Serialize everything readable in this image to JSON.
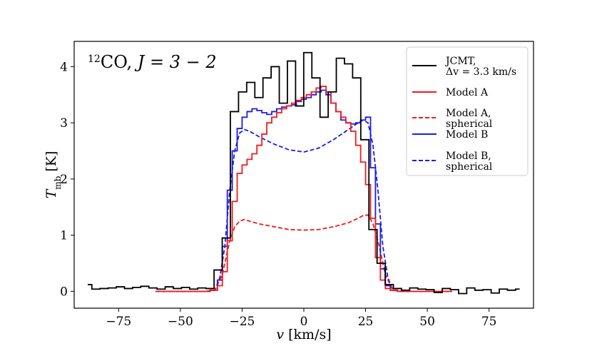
{
  "chart_data": {
    "type": "line",
    "title": "CO, J = 3 − 2",
    "title_isotope": "12",
    "title_species": "CO, ",
    "title_transition": "J = 3 − 2",
    "xlabel": "v [km/s]",
    "xlabel_symbol": "v",
    "xlabel_unit": " [km/s]",
    "ylabel": "T_mb [K]",
    "ylabel_symbol": "T",
    "ylabel_sub": "mb",
    "ylabel_unit": " [K]",
    "xlim": [
      -93,
      93
    ],
    "ylim": [
      -0.3,
      4.45
    ],
    "xticks": [
      -75,
      -50,
      -25,
      0,
      25,
      50,
      75
    ],
    "xtick_labels": [
      "−75",
      "−50",
      "−25",
      "0",
      "25",
      "50",
      "75"
    ],
    "yticks": [
      0,
      1,
      2,
      3,
      4
    ],
    "ytick_labels": [
      "0",
      "1",
      "2",
      "3",
      "4"
    ],
    "legend_position": "top-right",
    "series": [
      {
        "name": "JCMT, Δv = 3.3 km/s",
        "legend_line1": "JCMT,",
        "legend_line2": "Δv = 3.3 km/s",
        "color": "#000000",
        "style": "solid",
        "draw": "steps-mid",
        "x": [
          -87.5,
          -84.2,
          -80.9,
          -77.6,
          -74.3,
          -71.0,
          -67.7,
          -64.4,
          -61.1,
          -57.8,
          -54.5,
          -51.2,
          -47.9,
          -44.6,
          -41.3,
          -38.0,
          -34.7,
          -31.4,
          -28.1,
          -24.8,
          -21.5,
          -18.2,
          -14.9,
          -11.6,
          -8.3,
          -5.0,
          -1.7,
          1.6,
          4.9,
          8.2,
          11.5,
          14.8,
          18.1,
          21.4,
          24.7,
          28.0,
          31.3,
          34.6,
          37.9,
          41.2,
          44.5,
          47.8,
          51.1,
          54.4,
          57.7,
          61.0,
          64.3,
          67.6,
          70.9,
          74.2,
          77.5,
          80.8,
          84.1,
          87.4
        ],
        "y": [
          0.12,
          0.04,
          0.05,
          0.06,
          0.08,
          0.05,
          0.07,
          0.09,
          0.06,
          0.04,
          0.08,
          0.05,
          0.07,
          0.04,
          0.06,
          0.05,
          0.38,
          0.95,
          3.2,
          3.55,
          3.72,
          3.45,
          3.8,
          4.0,
          3.35,
          4.1,
          3.3,
          4.25,
          3.8,
          3.1,
          3.55,
          4.15,
          4.05,
          3.8,
          2.7,
          1.1,
          0.5,
          0.12,
          0.05,
          0.02,
          0.06,
          0.04,
          0.03,
          -0.02,
          0.05,
          0.03,
          -0.04,
          0.06,
          0.02,
          0.03,
          -0.03,
          0.04,
          0.02,
          0.04
        ]
      },
      {
        "name": "Model A",
        "legend_line1": "Model A",
        "legend_line2": "",
        "color": "#ee1c1c",
        "style": "solid",
        "draw": "steps-mid",
        "x": [
          -60,
          -55,
          -50,
          -45,
          -40,
          -36,
          -34,
          -32,
          -30,
          -28,
          -26,
          -24,
          -22,
          -20,
          -18,
          -16,
          -14,
          -12,
          -10,
          -8,
          -6,
          -4,
          -2,
          0,
          2,
          4,
          6,
          8,
          10,
          12,
          14,
          16,
          18,
          20,
          22,
          24,
          26,
          28,
          30,
          32,
          34,
          36,
          40,
          45,
          50,
          55,
          60
        ],
        "y": [
          0,
          0,
          0,
          0,
          0,
          0.02,
          0.1,
          0.35,
          0.9,
          1.6,
          2.1,
          2.25,
          2.35,
          2.45,
          2.6,
          2.8,
          3.0,
          3.1,
          3.18,
          3.25,
          3.3,
          3.35,
          3.4,
          3.45,
          3.5,
          3.55,
          3.62,
          3.65,
          3.55,
          3.35,
          3.2,
          3.1,
          3.0,
          2.85,
          2.6,
          2.3,
          1.9,
          1.3,
          0.6,
          0.2,
          0.05,
          0.02,
          0,
          0,
          0,
          0,
          0
        ]
      },
      {
        "name": "Model A, spherical",
        "legend_line1": "Model A,",
        "legend_line2": "spherical",
        "color": "#ee1c1c",
        "style": "dashed",
        "draw": "line",
        "x": [
          -60,
          -50,
          -40,
          -36,
          -33,
          -30,
          -28,
          -26,
          -24,
          -22,
          -18,
          -12,
          -6,
          0,
          6,
          12,
          18,
          22,
          24,
          26,
          28,
          30,
          33,
          36,
          40,
          50,
          60
        ],
        "y": [
          0,
          0,
          0,
          0.02,
          0.3,
          0.9,
          1.15,
          1.25,
          1.28,
          1.25,
          1.2,
          1.15,
          1.1,
          1.09,
          1.1,
          1.15,
          1.22,
          1.3,
          1.35,
          1.36,
          1.2,
          0.9,
          0.3,
          0.02,
          0,
          0,
          0
        ]
      },
      {
        "name": "Model B",
        "legend_line1": "Model B",
        "legend_line2": "",
        "color": "#1c1ce6",
        "style": "solid",
        "draw": "steps-mid",
        "x": [
          -60,
          -50,
          -40,
          -36,
          -34,
          -32,
          -30,
          -28,
          -26,
          -24,
          -22,
          -20,
          -18,
          -16,
          -14,
          -12,
          -10,
          -8,
          -6,
          -4,
          -2,
          0,
          2,
          4,
          6,
          8,
          10,
          12,
          14,
          16,
          18,
          20,
          22,
          24,
          26,
          28,
          30,
          32,
          34,
          36,
          40,
          50,
          60
        ],
        "y": [
          0,
          0,
          0,
          0.02,
          0.2,
          0.8,
          1.8,
          2.5,
          2.9,
          3.1,
          3.2,
          3.25,
          3.22,
          3.18,
          3.15,
          3.2,
          3.25,
          3.28,
          3.3,
          3.32,
          3.38,
          3.42,
          3.45,
          3.5,
          3.55,
          3.58,
          3.5,
          3.35,
          3.2,
          3.05,
          3.0,
          2.98,
          3.0,
          3.05,
          3.1,
          2.2,
          1.2,
          0.4,
          0.1,
          0.02,
          0,
          0,
          0
        ]
      },
      {
        "name": "Model B, spherical",
        "legend_line1": "Model B,",
        "legend_line2": "spherical",
        "color": "#1c1ce6",
        "style": "dashed",
        "draw": "line",
        "x": [
          -60,
          -50,
          -40,
          -36,
          -34,
          -32,
          -30,
          -28,
          -26,
          -24,
          -22,
          -18,
          -12,
          -6,
          0,
          6,
          12,
          18,
          22,
          24,
          26,
          28,
          30,
          32,
          34,
          36,
          40,
          50,
          60
        ],
        "y": [
          0,
          0,
          0,
          0.02,
          0.25,
          0.8,
          1.8,
          2.5,
          2.82,
          2.88,
          2.85,
          2.75,
          2.62,
          2.52,
          2.48,
          2.55,
          2.7,
          2.88,
          3.0,
          3.05,
          3.0,
          2.6,
          1.8,
          0.8,
          0.25,
          0.02,
          0,
          0,
          0
        ]
      }
    ]
  }
}
